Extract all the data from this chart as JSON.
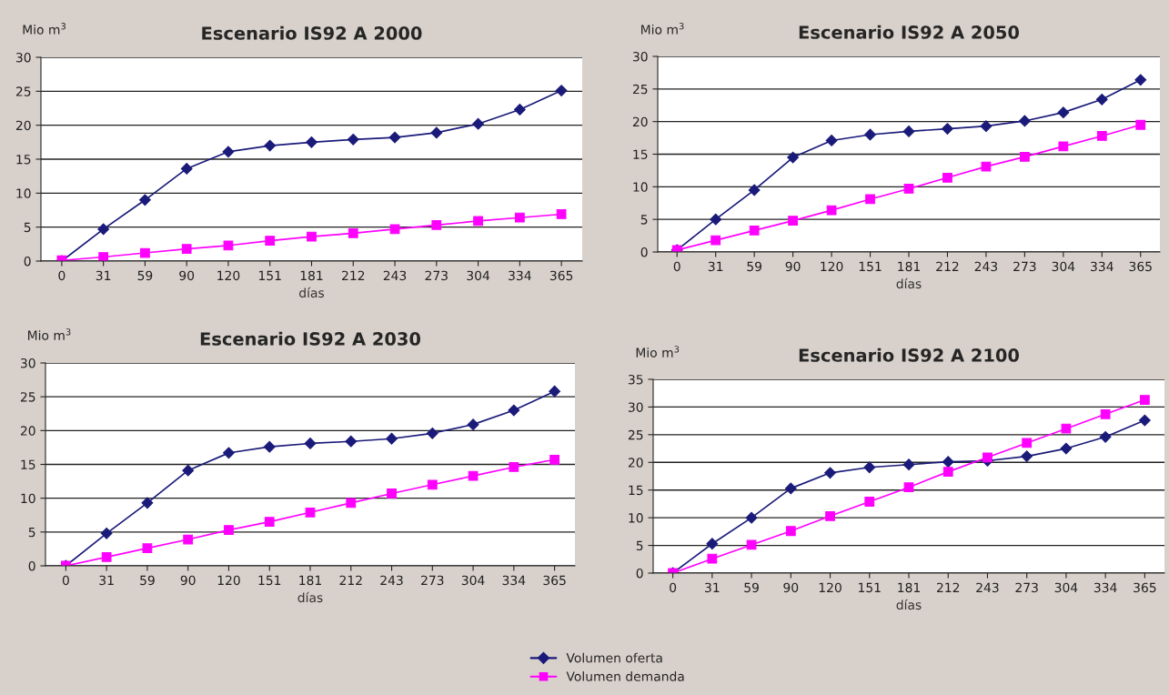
{
  "chart_data": [
    {
      "type": "line",
      "title": "Escenario IS92 A 2000",
      "ylabel": "Mio m$^{3}$",
      "xlabel": "días",
      "categories": [
        "0",
        "31",
        "59",
        "90",
        "120",
        "151",
        "181",
        "212",
        "243",
        "273",
        "304",
        "334",
        "365"
      ],
      "ylim": [
        0,
        30
      ],
      "yticks": [
        0,
        5,
        10,
        15,
        20,
        25,
        30
      ],
      "grid": "y",
      "legend": "bottom",
      "series": [
        {
          "name": "Volumen oferta",
          "color": "#1a1a7a",
          "marker": "diamond",
          "values": [
            0,
            4.7,
            9,
            13.6,
            16.1,
            17,
            17.5,
            17.9,
            18.2,
            18.9,
            20.2,
            22.3,
            25.1
          ]
        },
        {
          "name": "Volumen demanda",
          "color": "#ff00ff",
          "marker": "square",
          "values": [
            0.1,
            0.6,
            1.2,
            1.8,
            2.3,
            3.0,
            3.6,
            4.1,
            4.7,
            5.3,
            5.9,
            6.4,
            6.9
          ]
        }
      ]
    },
    {
      "type": "line",
      "title": "Escenario IS92 A 2050",
      "ylabel": "Mio m$^{3}$",
      "xlabel": "días",
      "categories": [
        "0",
        "31",
        "59",
        "90",
        "120",
        "151",
        "181",
        "212",
        "243",
        "273",
        "304",
        "334",
        "365"
      ],
      "ylim": [
        0,
        30
      ],
      "yticks": [
        0,
        5,
        10,
        15,
        20,
        25,
        30
      ],
      "grid": "y",
      "series": [
        {
          "color": "#1a1a7a",
          "marker": "diamond",
          "values": [
            0.3,
            5,
            9.5,
            14.5,
            17.1,
            18,
            18.5,
            18.9,
            19.3,
            20.1,
            21.4,
            23.4,
            26.4
          ]
        },
        {
          "color": "#ff00ff",
          "marker": "square",
          "values": [
            0.3,
            1.8,
            3.3,
            4.8,
            6.4,
            8.1,
            9.7,
            11.4,
            13.1,
            14.6,
            16.2,
            17.8,
            19.5
          ]
        }
      ]
    },
    {
      "type": "line",
      "title": "Escenario IS92 A 2030",
      "ylabel": "Mio m$^{3}$",
      "xlabel": "días",
      "categories": [
        "0",
        "31",
        "59",
        "90",
        "120",
        "151",
        "181",
        "212",
        "243",
        "273",
        "304",
        "334",
        "365"
      ],
      "ylim": [
        0,
        30
      ],
      "yticks": [
        0,
        5,
        10,
        15,
        20,
        25,
        30
      ],
      "grid": "y",
      "series": [
        {
          "color": "#1a1a7a",
          "marker": "diamond",
          "values": [
            0,
            4.8,
            9.3,
            14.1,
            16.7,
            17.6,
            18.1,
            18.4,
            18.8,
            19.6,
            20.9,
            23,
            25.8
          ]
        },
        {
          "color": "#ff00ff",
          "marker": "square",
          "values": [
            0,
            1.3,
            2.6,
            3.9,
            5.3,
            6.5,
            7.9,
            9.3,
            10.7,
            12,
            13.3,
            14.6,
            15.7
          ]
        }
      ]
    },
    {
      "type": "line",
      "title": "Escenario IS92 A 2100",
      "ylabel": "Mio m$^{3}$",
      "xlabel": "días",
      "categories": [
        "0",
        "31",
        "59",
        "90",
        "120",
        "151",
        "181",
        "212",
        "243",
        "273",
        "304",
        "334",
        "365"
      ],
      "ylim": [
        0,
        35
      ],
      "yticks": [
        0,
        5,
        10,
        15,
        20,
        25,
        30,
        35
      ],
      "grid": "y",
      "series": [
        {
          "color": "#1a1a7a",
          "marker": "diamond",
          "values": [
            0,
            5.3,
            10,
            15.3,
            18.1,
            19.1,
            19.6,
            20.1,
            20.3,
            21.1,
            22.5,
            24.6,
            27.6
          ]
        },
        {
          "color": "#ff00ff",
          "marker": "square",
          "values": [
            0,
            2.6,
            5.1,
            7.6,
            10.3,
            12.9,
            15.5,
            18.3,
            20.9,
            23.5,
            26.1,
            28.7,
            31.3
          ]
        }
      ]
    }
  ]
}
